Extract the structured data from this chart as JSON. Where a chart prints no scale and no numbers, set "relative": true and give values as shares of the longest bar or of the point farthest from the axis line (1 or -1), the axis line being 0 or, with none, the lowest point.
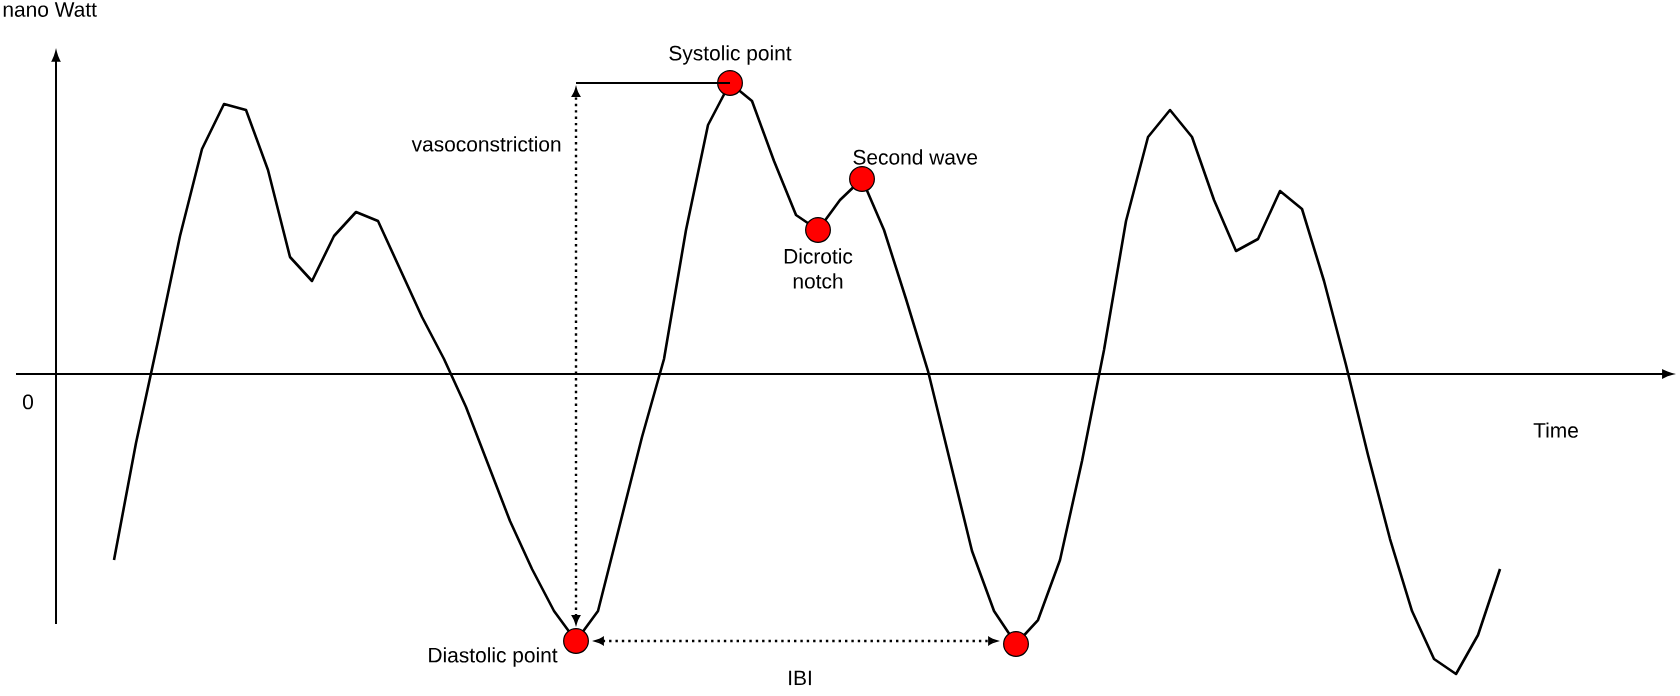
{
  "chart_data": {
    "type": "line",
    "relative": true,
    "xlabel": "Time",
    "ylabel": "nano Watt",
    "line_style": "solid",
    "categories": [
      null,
      null,
      null,
      null,
      null,
      null,
      null,
      null,
      null,
      null,
      null,
      null,
      null,
      null,
      null,
      null,
      null,
      null,
      null,
      null,
      null,
      null,
      null,
      null,
      null,
      null,
      null,
      null,
      null,
      null,
      null,
      null,
      null,
      null,
      null,
      null,
      null,
      null,
      null,
      null,
      null,
      null,
      null,
      null,
      null,
      null,
      null,
      null,
      null,
      null,
      null,
      null,
      null,
      null,
      null,
      null,
      null,
      null,
      null,
      null,
      null,
      null,
      null,
      null
    ],
    "series": [
      {
        "color": "#000000",
        "values": [
          -0.62,
          -0.23,
          0.11,
          0.46,
          0.75,
          0.9,
          0.88,
          0.68,
          0.39,
          0.31,
          0.46,
          0.54,
          0.51,
          0.35,
          0.19,
          0.05,
          -0.11,
          -0.3,
          -0.49,
          -0.65,
          -0.79,
          -0.89,
          -0.79,
          -0.5,
          -0.21,
          0.05,
          0.48,
          0.83,
          0.97,
          0.91,
          0.71,
          0.53,
          0.48,
          0.58,
          0.65,
          0.48,
          0.25,
          0.01,
          -0.29,
          -0.59,
          -0.79,
          -0.9,
          -0.82,
          -0.62,
          -0.29,
          0.08,
          0.51,
          0.79,
          0.88,
          0.79,
          0.58,
          0.41,
          0.45,
          0.61,
          0.55,
          0.31,
          0.03,
          -0.27,
          -0.55,
          -0.79,
          -0.95,
          -1,
          -0.87,
          -0.65
        ]
      }
    ],
    "annotations": [
      "Systolic point",
      "Dicrotic notch",
      "Second wave",
      "Diastolic point",
      "vasoconstriction",
      "IBI",
      "0"
    ]
  }
}
